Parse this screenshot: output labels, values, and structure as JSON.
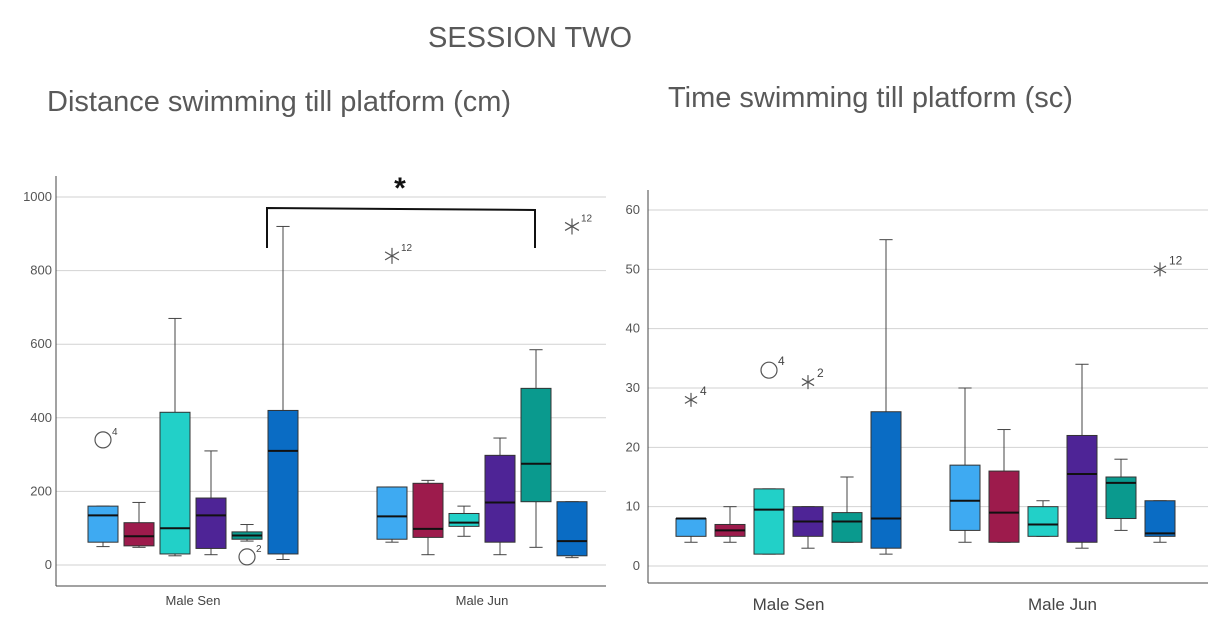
{
  "session_title": "SESSION TWO",
  "chart_data": [
    {
      "type": "box",
      "title": "Distance swimming till platform (cm)",
      "xlabel": "",
      "ylabel": "",
      "categories": [
        "Male Sen",
        "Male Jun"
      ],
      "ylim": [
        0,
        1000
      ],
      "yticks": [
        0,
        200,
        400,
        600,
        800,
        1000
      ],
      "grid": true,
      "box_colors": [
        "#3eaaf2",
        "#9d1b4c",
        "#22d0c8",
        "#4e2496",
        "#0a9a8e",
        "#0a6cc4"
      ],
      "groups": [
        {
          "category": "Male Sen",
          "boxes": [
            {
              "min": 50,
              "q1": 62,
              "median": 135,
              "q3": 160,
              "max": 160
            },
            {
              "min": 48,
              "q1": 52,
              "median": 78,
              "q3": 115,
              "max": 170
            },
            {
              "min": 25,
              "q1": 30,
              "median": 100,
              "q3": 415,
              "max": 670
            },
            {
              "min": 28,
              "q1": 45,
              "median": 135,
              "q3": 182,
              "max": 310
            },
            {
              "min": 65,
              "q1": 70,
              "median": 80,
              "q3": 90,
              "max": 110
            },
            {
              "min": 15,
              "q1": 30,
              "median": 310,
              "q3": 420,
              "max": 920
            }
          ]
        },
        {
          "category": "Male Jun",
          "boxes": [
            {
              "min": 62,
              "q1": 70,
              "median": 132,
              "q3": 212,
              "max": 212
            },
            {
              "min": 28,
              "q1": 75,
              "median": 98,
              "q3": 222,
              "max": 230
            },
            {
              "min": 78,
              "q1": 105,
              "median": 115,
              "q3": 140,
              "max": 160
            },
            {
              "min": 28,
              "q1": 62,
              "median": 170,
              "q3": 298,
              "max": 345
            },
            {
              "min": 48,
              "q1": 172,
              "median": 275,
              "q3": 480,
              "max": 585
            },
            {
              "min": 20,
              "q1": 25,
              "median": 65,
              "q3": 172,
              "max": 172
            }
          ]
        }
      ],
      "outliers": [
        {
          "group": 0,
          "box": 0,
          "value": 340,
          "marker": "circle",
          "label": "4"
        },
        {
          "group": 0,
          "box": 4,
          "value": 22,
          "marker": "circle",
          "label": "2"
        },
        {
          "group": 1,
          "box": 0,
          "value": 840,
          "marker": "star",
          "label": "12"
        },
        {
          "group": 1,
          "box": 5,
          "value": 920,
          "marker": "star",
          "label": "12"
        }
      ],
      "significance": {
        "from_group": 0,
        "from_box": 5,
        "to_group": 1,
        "to_box": 4,
        "label": "*"
      }
    },
    {
      "type": "box",
      "title": "Time swimming till platform (sc)",
      "xlabel": "",
      "ylabel": "",
      "categories": [
        "Male Sen",
        "Male Jun"
      ],
      "ylim": [
        0,
        60
      ],
      "yticks": [
        0,
        10,
        20,
        30,
        40,
        50,
        60
      ],
      "grid": true,
      "box_colors": [
        "#3eaaf2",
        "#9d1b4c",
        "#22d0c8",
        "#4e2496",
        "#0a9a8e",
        "#0a6cc4"
      ],
      "groups": [
        {
          "category": "Male Sen",
          "boxes": [
            {
              "min": 4,
              "q1": 5,
              "median": 8,
              "q3": 8,
              "max": 8
            },
            {
              "min": 4,
              "q1": 5,
              "median": 6,
              "q3": 7,
              "max": 10
            },
            {
              "min": 2,
              "q1": 2,
              "median": 9.5,
              "q3": 13,
              "max": 13
            },
            {
              "min": 3,
              "q1": 5,
              "median": 7.5,
              "q3": 10,
              "max": 10
            },
            {
              "min": 4,
              "q1": 4,
              "median": 7.5,
              "q3": 9,
              "max": 15
            },
            {
              "min": 2,
              "q1": 3,
              "median": 8,
              "q3": 26,
              "max": 55
            }
          ]
        },
        {
          "category": "Male Jun",
          "boxes": [
            {
              "min": 4,
              "q1": 6,
              "median": 11,
              "q3": 17,
              "max": 30
            },
            {
              "min": 4,
              "q1": 4,
              "median": 9,
              "q3": 16,
              "max": 23
            },
            {
              "min": 5,
              "q1": 5,
              "median": 7,
              "q3": 10,
              "max": 11
            },
            {
              "min": 3,
              "q1": 4,
              "median": 15.5,
              "q3": 22,
              "max": 34
            },
            {
              "min": 6,
              "q1": 8,
              "median": 14,
              "q3": 15,
              "max": 18
            },
            {
              "min": 4,
              "q1": 5,
              "median": 5.5,
              "q3": 11,
              "max": 11
            }
          ]
        }
      ],
      "outliers": [
        {
          "group": 0,
          "box": 0,
          "value": 28,
          "marker": "star",
          "label": "4"
        },
        {
          "group": 0,
          "box": 2,
          "value": 33,
          "marker": "circle",
          "label": "4"
        },
        {
          "group": 0,
          "box": 3,
          "value": 31,
          "marker": "star",
          "label": "2"
        },
        {
          "group": 1,
          "box": 5,
          "value": 50,
          "marker": "star",
          "label": "12"
        }
      ]
    }
  ]
}
